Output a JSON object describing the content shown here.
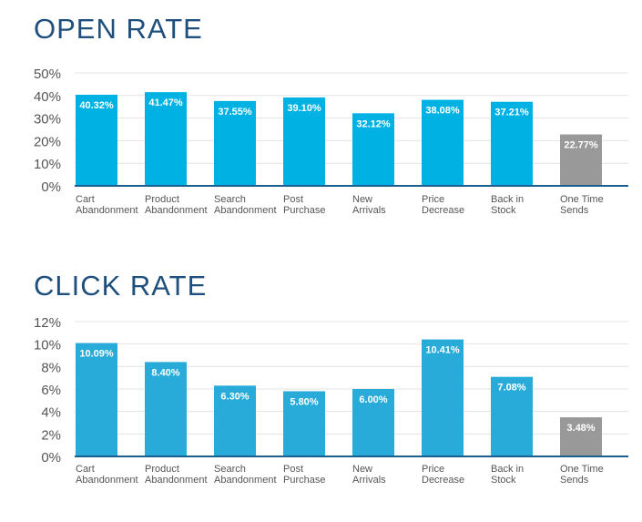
{
  "chart_data": [
    {
      "type": "bar",
      "title": "OPEN RATE",
      "categories": [
        [
          "Cart",
          "Abandonment"
        ],
        [
          "Product",
          "Abandonment"
        ],
        [
          "Search",
          "Abandonment"
        ],
        [
          "Post",
          "Purchase"
        ],
        [
          "New",
          "Arrivals"
        ],
        [
          "Price",
          "Decrease"
        ],
        [
          "Back in",
          "Stock"
        ],
        [
          "One Time",
          "Sends"
        ]
      ],
      "values": [
        40.32,
        41.47,
        37.55,
        39.1,
        32.12,
        38.08,
        37.21,
        22.77
      ],
      "value_labels": [
        "40.32%",
        "41.47%",
        "37.55%",
        "39.10%",
        "32.12%",
        "38.08%",
        "37.21%",
        "22.77%"
      ],
      "ylim": [
        0,
        50
      ],
      "yticks": [
        0,
        10,
        20,
        30,
        40,
        50
      ],
      "ytick_labels": [
        "0%",
        "10%",
        "20%",
        "30%",
        "40%",
        "50%"
      ],
      "bar_colors": [
        "#00b2e3",
        "#00b2e3",
        "#00b2e3",
        "#00b2e3",
        "#00b2e3",
        "#00b2e3",
        "#00b2e3",
        "#999999"
      ],
      "grid": true,
      "xlabel": "",
      "ylabel": ""
    },
    {
      "type": "bar",
      "title": "CLICK RATE",
      "categories": [
        [
          "Cart",
          "Abandonment"
        ],
        [
          "Product",
          "Abandonment"
        ],
        [
          "Search",
          "Abandonment"
        ],
        [
          "Post",
          "Purchase"
        ],
        [
          "New",
          "Arrivals"
        ],
        [
          "Price",
          "Decrease"
        ],
        [
          "Back in",
          "Stock"
        ],
        [
          "One Time",
          "Sends"
        ]
      ],
      "values": [
        10.09,
        8.4,
        6.3,
        5.8,
        6.0,
        10.41,
        7.08,
        3.48
      ],
      "value_labels": [
        "10.09%",
        "8.40%",
        "6.30%",
        "5.80%",
        "6.00%",
        "10.41%",
        "7.08%",
        "3.48%"
      ],
      "ylim": [
        0,
        12
      ],
      "yticks": [
        0,
        2,
        4,
        6,
        8,
        10,
        12
      ],
      "ytick_labels": [
        "0%",
        "2%",
        "4%",
        "6%",
        "8%",
        "10%",
        "12%"
      ],
      "bar_colors": [
        "#29abd9",
        "#29abd9",
        "#29abd9",
        "#29abd9",
        "#29abd9",
        "#29abd9",
        "#29abd9",
        "#999999"
      ],
      "grid": true,
      "xlabel": "",
      "ylabel": ""
    }
  ],
  "colors": {
    "title": "#1f4f7c",
    "axis_text": "#555555",
    "gridline": "#e3e3e3",
    "baseline": "#1a5f8f",
    "bar_label": "#ffffff"
  }
}
